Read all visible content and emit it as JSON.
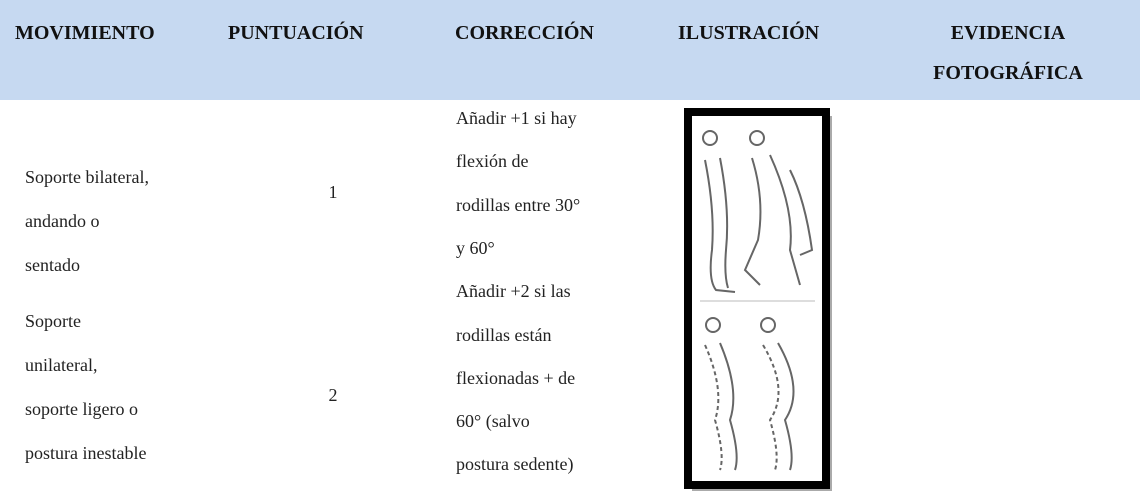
{
  "table": {
    "header": [
      [
        "MOVIMIENTO"
      ],
      [
        "PUNTUACIÓN"
      ],
      [
        "CORRECCIÓN"
      ],
      [
        "ILUSTRACIÓN"
      ],
      [
        "EVIDENCIA",
        "FOTOGRÁFICA"
      ]
    ],
    "rows": [
      {
        "movimiento": [
          "Soporte bilateral,",
          "andando o",
          "sentado"
        ],
        "puntuacion": "1",
        "correccion": [
          "Añadir +1 si hay",
          "flexión de",
          "rodillas entre 30°",
          "y 60°"
        ]
      },
      {
        "movimiento": [
          "Soporte",
          "unilateral,",
          "soporte ligero o",
          "postura inestable"
        ],
        "puntuacion": "2",
        "correccion": [
          "Añadir +2 si las",
          "rodillas están",
          "flexionadas + de",
          "60° (salvo",
          "postura sedente)"
        ]
      }
    ]
  }
}
